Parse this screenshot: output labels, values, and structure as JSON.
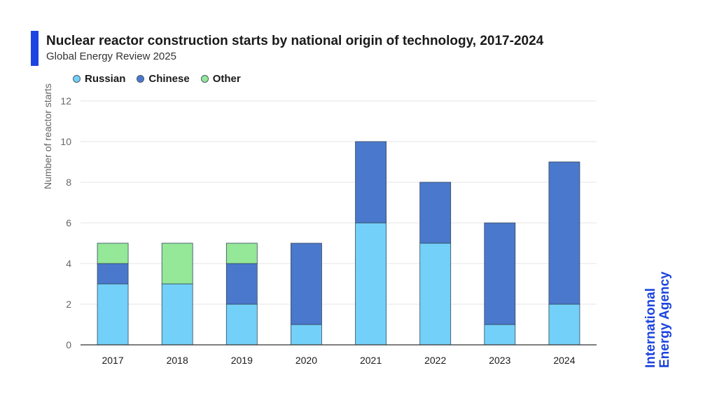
{
  "header": {
    "title": "Nuclear reactor construction starts by national origin of technology, 2017-2024",
    "subtitle": "Global Energy Review 2025",
    "accent_color": "#1c44e0"
  },
  "brand": {
    "line1": "International",
    "line2": "Energy Agency",
    "color": "#1c44e0"
  },
  "chart_data": {
    "type": "bar",
    "stacked": true,
    "categories": [
      "2017",
      "2018",
      "2019",
      "2020",
      "2021",
      "2022",
      "2023",
      "2024"
    ],
    "series": [
      {
        "name": "Russian",
        "color": "#73d0f8",
        "values": [
          3,
          3,
          2,
          1,
          6,
          5,
          1,
          2
        ]
      },
      {
        "name": "Chinese",
        "color": "#4a78cc",
        "values": [
          1,
          0,
          2,
          4,
          4,
          3,
          5,
          7
        ]
      },
      {
        "name": "Other",
        "color": "#94e898",
        "values": [
          1,
          2,
          1,
          0,
          0,
          0,
          0,
          0
        ]
      }
    ],
    "ylabel": "Number of reactor starts",
    "ylim": [
      0,
      12
    ],
    "yticks": [
      0,
      2,
      4,
      6,
      8,
      10,
      12
    ],
    "grid": true,
    "legend_position": "top-left"
  }
}
